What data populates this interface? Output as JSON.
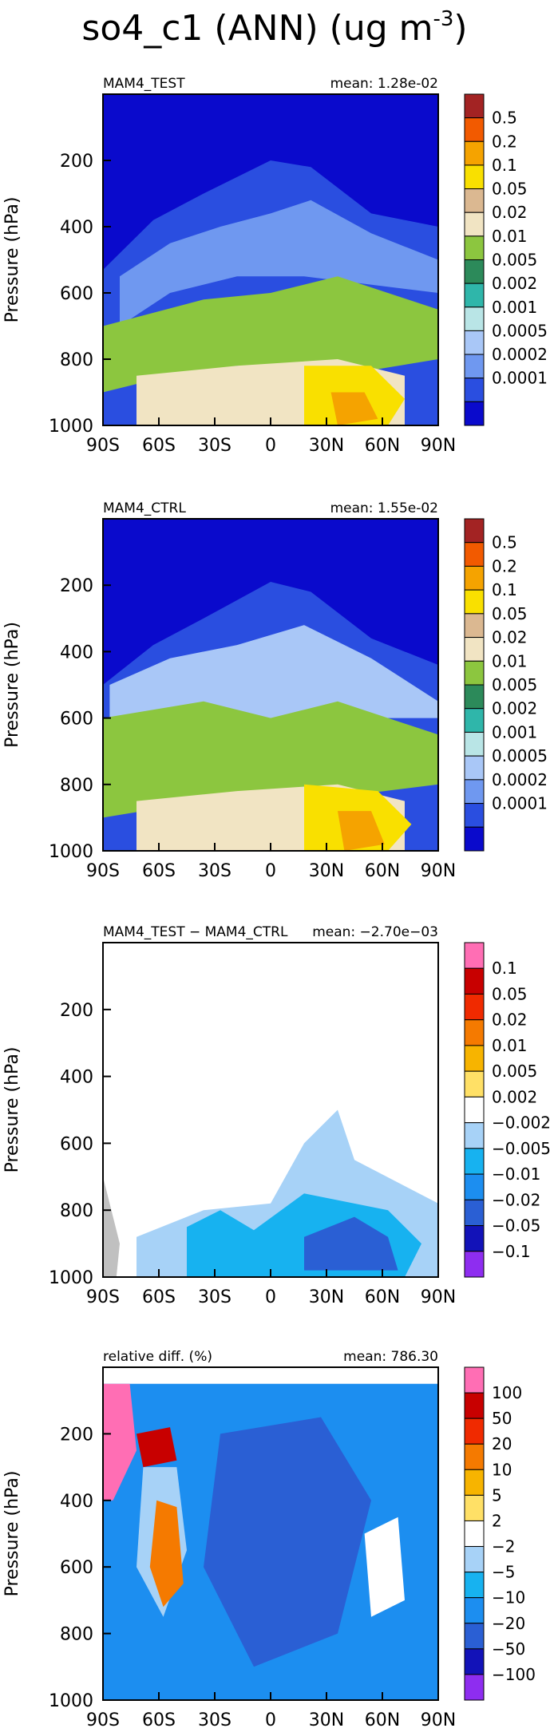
{
  "page": {
    "variable": "so4_c1 (ANN) (ug m",
    "units_sup": "-3",
    "close": ")"
  },
  "colors": {
    "frame": "#000000",
    "missing": "#c0c0c0",
    "abs_scale": [
      "#0a0acc",
      "#2a4ee0",
      "#6f98f0",
      "#a9c7f7",
      "#b9e5e6",
      "#2fb6aa",
      "#2c8a5a",
      "#8cc63f",
      "#f1e4c3",
      "#dbb891",
      "#f9e000",
      "#f5a300",
      "#f25a00",
      "#a32323"
    ],
    "diff_scale": [
      "#8e2df0",
      "#1212b8",
      "#2a5fd4",
      "#1c8ef0",
      "#17b2f0",
      "#a7d2f7",
      "#ffffff",
      "#ffe066",
      "#f7b400",
      "#f57a00",
      "#f02a00",
      "#c80000",
      "#ff6eb4"
    ]
  },
  "chart_data": [
    {
      "type": "heatmap",
      "panel": "test",
      "left_label": "MAM4_TEST",
      "right_label": "mean: 1.28e-02",
      "xlabel": "",
      "ylabel": "Pressure (hPa)",
      "x_ticks": [
        "90S",
        "60S",
        "30S",
        "0",
        "30N",
        "60N",
        "90N"
      ],
      "x_values": [
        -90,
        -60,
        -30,
        0,
        30,
        60,
        90
      ],
      "y_ticks": [
        "200",
        "400",
        "600",
        "800",
        "1000"
      ],
      "y_values": [
        200,
        400,
        600,
        800,
        1000
      ],
      "ylim": [
        1000,
        0
      ],
      "xlim": [
        -90,
        90
      ],
      "colorbar_labels": [
        "0.5",
        "0.2",
        "0.1",
        "0.05",
        "0.02",
        "0.01",
        "0.005",
        "0.002",
        "0.001",
        "0.0005",
        "0.0002",
        "0.0001"
      ]
    },
    {
      "type": "heatmap",
      "panel": "ctrl",
      "left_label": "MAM4_CTRL",
      "right_label": "mean: 1.55e-02",
      "xlabel": "",
      "ylabel": "Pressure (hPa)",
      "x_ticks": [
        "90S",
        "60S",
        "30S",
        "0",
        "30N",
        "60N",
        "90N"
      ],
      "x_values": [
        -90,
        -60,
        -30,
        0,
        30,
        60,
        90
      ],
      "y_ticks": [
        "200",
        "400",
        "600",
        "800",
        "1000"
      ],
      "y_values": [
        200,
        400,
        600,
        800,
        1000
      ],
      "ylim": [
        1000,
        0
      ],
      "xlim": [
        -90,
        90
      ],
      "colorbar_labels": [
        "0.5",
        "0.2",
        "0.1",
        "0.05",
        "0.02",
        "0.01",
        "0.005",
        "0.002",
        "0.001",
        "0.0005",
        "0.0002",
        "0.0001"
      ]
    },
    {
      "type": "heatmap",
      "panel": "diff",
      "left_label": "MAM4_TEST − MAM4_CTRL",
      "right_label": "mean: −2.70e−03",
      "xlabel": "",
      "ylabel": "Pressure (hPa)",
      "x_ticks": [
        "90S",
        "60S",
        "30S",
        "0",
        "30N",
        "60N",
        "90N"
      ],
      "x_values": [
        -90,
        -60,
        -30,
        0,
        30,
        60,
        90
      ],
      "y_ticks": [
        "200",
        "400",
        "600",
        "800",
        "1000"
      ],
      "y_values": [
        200,
        400,
        600,
        800,
        1000
      ],
      "ylim": [
        1000,
        0
      ],
      "xlim": [
        -90,
        90
      ],
      "colorbar_labels": [
        "0.1",
        "0.05",
        "0.02",
        "0.01",
        "0.005",
        "0.002",
        "−0.002",
        "−0.005",
        "−0.01",
        "−0.02",
        "−0.05",
        "−0.1"
      ]
    },
    {
      "type": "heatmap",
      "panel": "reldiff",
      "left_label": "relative diff. (%)",
      "right_label": "mean: 786.30",
      "xlabel": "",
      "ylabel": "Pressure (hPa)",
      "x_ticks": [
        "90S",
        "60S",
        "30S",
        "0",
        "30N",
        "60N",
        "90N"
      ],
      "x_values": [
        -90,
        -60,
        -30,
        0,
        30,
        60,
        90
      ],
      "y_ticks": [
        "200",
        "400",
        "600",
        "800",
        "1000"
      ],
      "y_values": [
        200,
        400,
        600,
        800,
        1000
      ],
      "ylim": [
        1000,
        0
      ],
      "xlim": [
        -90,
        90
      ],
      "colorbar_labels": [
        "100",
        "50",
        "20",
        "10",
        "5",
        "2",
        "−2",
        "−5",
        "−10",
        "−20",
        "−50",
        "−100"
      ]
    }
  ]
}
